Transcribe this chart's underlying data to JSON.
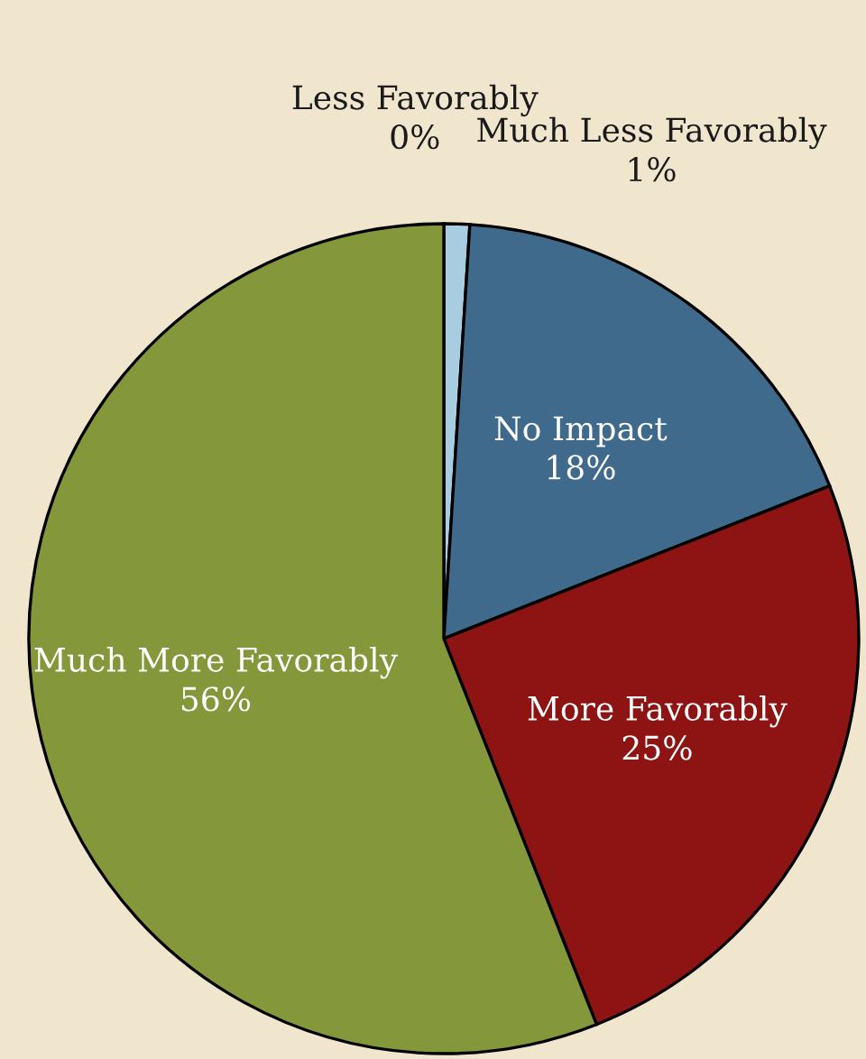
{
  "chart_data": {
    "type": "pie",
    "categories": [
      "Less Favorably",
      "Much Less Favorably",
      "No Impact",
      "More Favorably",
      "Much More Favorably"
    ],
    "values": [
      0,
      1,
      18,
      25,
      56
    ],
    "colors": [
      "#6f9fbf",
      "#a8cde0",
      "#3f6a8c",
      "#8e1414",
      "#84973a"
    ],
    "value_labels": [
      "0%",
      "1%",
      "18%",
      "25%",
      "56%"
    ]
  }
}
